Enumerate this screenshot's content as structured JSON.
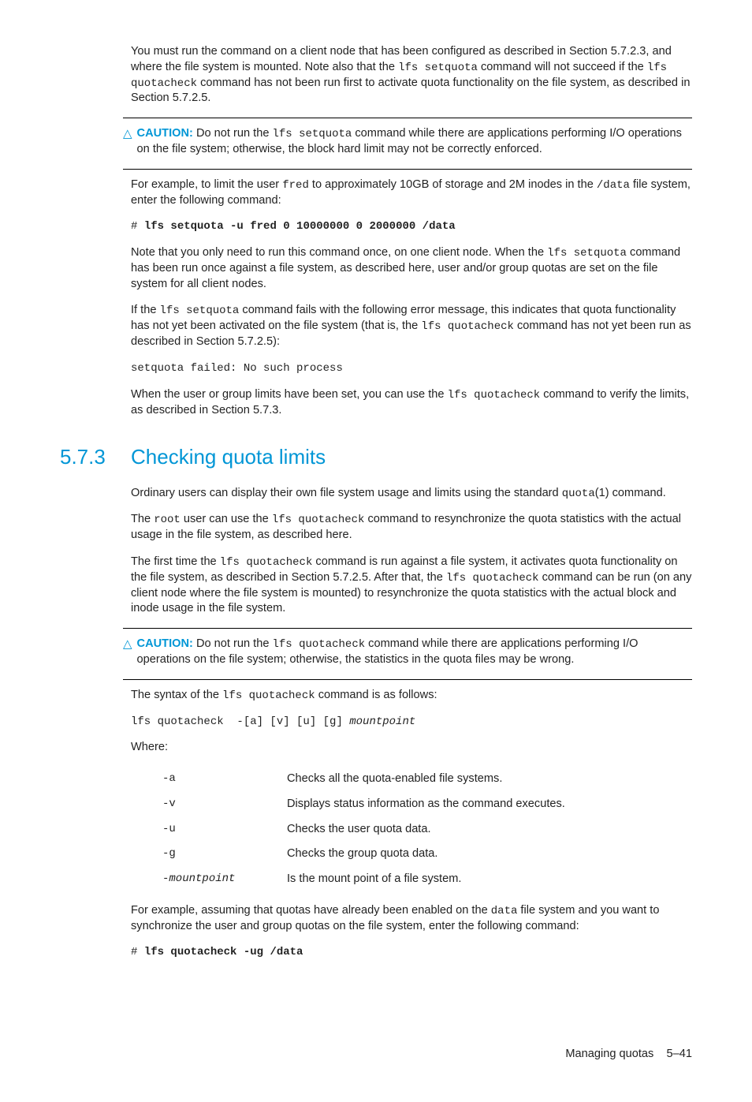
{
  "p1_a": "You must run the command on a client node that has been configured as described in Section 5.7.2.3, and where the file system is mounted. Note also that the ",
  "p1_b": "lfs setquota",
  "p1_c": " command will not succeed if the ",
  "p1_d": "lfs quotacheck",
  "p1_e": " command has not been run first to activate quota functionality on the file system, as described in Section 5.7.2.5.",
  "caution1_label": "CAUTION:",
  "caution1_a": " Do not run the ",
  "caution1_b": "lfs setquota",
  "caution1_c": " command while there are applications performing I/O operations on the file system; otherwise, the block hard limit may not be correctly enforced.",
  "p2_a": "For example, to limit the user ",
  "p2_b": "fred",
  "p2_c": " to approximately 10GB of storage and 2M inodes in the ",
  "p2_d": "/data",
  "p2_e": " file system, enter the following command:",
  "cmd1_hash": "# ",
  "cmd1": "lfs setquota -u fred 0 10000000 0 2000000  /data",
  "p3_a": "Note that you only need to run this command once, on one client node. When the ",
  "p3_b": "lfs setquota",
  "p3_c": " command has been run once against a file system, as described here, user and/or group quotas are set on the file system for all client nodes.",
  "p4_a": "If the ",
  "p4_b": "lfs setquota",
  "p4_c": " command fails with the following error message, this indicates that quota functionality has not yet been activated on the file system (that is, the ",
  "p4_d": "lfs quotacheck",
  "p4_e": " command has not yet been run as described in Section 5.7.2.5):",
  "err1": "setquota failed: No such process",
  "p5_a": "When the user or group limits have been set, you can use the ",
  "p5_b": "lfs quotacheck",
  "p5_c": " command to verify the limits, as described in Section 5.7.3.",
  "sec_num": "5.7.3",
  "sec_title": "Checking quota limits",
  "p6_a": "Ordinary users can display their own file system usage and limits using the standard ",
  "p6_b": "quota",
  "p6_c": "(1) command.",
  "p7_a": "The ",
  "p7_b": "root",
  "p7_c": " user can use the ",
  "p7_d": "lfs quotacheck",
  "p7_e": " command to resynchronize the quota statistics with the actual usage in the file system, as described here.",
  "p8_a": "The first time the ",
  "p8_b": "lfs quotacheck",
  "p8_c": " command is run against a file system, it activates quota functionality on the file system, as described in Section 5.7.2.5. After that, the ",
  "p8_d": "lfs quotacheck",
  "p8_e": " command can be run (on any client node where the file system is mounted) to resynchronize the quota statistics with the actual block and inode usage in the file system.",
  "caution2_label": "CAUTION:",
  "caution2_a": " Do not run the ",
  "caution2_b": "lfs quotacheck",
  "caution2_c": " command while there are applications performing I/O operations on the file system; otherwise, the statistics in the quota files may be wrong.",
  "p9_a": "The syntax of the ",
  "p9_b": "lfs quotacheck",
  "p9_c": " command is as follows:",
  "syntax_a": "lfs quotacheck  -[a] [v] [u] [g] ",
  "syntax_b": "mountpoint",
  "where": "Where:",
  "opt1_flag": "-a",
  "opt1_desc": "Checks all the quota-enabled file systems.",
  "opt2_flag": "-v",
  "opt2_desc": "Displays status information as the command executes.",
  "opt3_flag": "-u",
  "opt3_desc": "Checks the user quota data.",
  "opt4_flag": "-g",
  "opt4_desc": "Checks the group quota data.",
  "opt5_flag_a": "-",
  "opt5_flag_b": "mountpoint",
  "opt5_desc": "Is the mount point of a file system.",
  "p10_a": "For example, assuming that quotas have already been enabled on the ",
  "p10_b": "data",
  "p10_c": " file system and you want to synchronize the user and group quotas on the file system, enter the following command:",
  "cmd2_hash": "# ",
  "cmd2": "lfs quotacheck -ug /data",
  "footer_a": "Managing quotas",
  "footer_b": "5–41"
}
